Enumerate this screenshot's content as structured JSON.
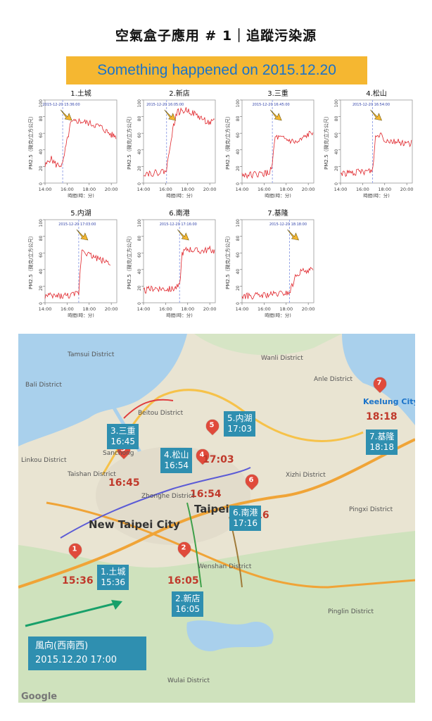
{
  "header": {
    "title": "空氣盒子應用 # 1｜追蹤污染源",
    "banner": "Something happened on 2015.12.20"
  },
  "axis": {
    "ylabel": "PM2.5（微克/立方公尺）",
    "xlabel": "時間(時：分)",
    "yticks": [
      "0",
      "20",
      "40",
      "60",
      "80",
      "100"
    ],
    "xticks": [
      "14:00",
      "16:00",
      "18:00",
      "20:00"
    ]
  },
  "chart_data": [
    {
      "type": "line",
      "title": "1.土城",
      "annotation": "2015-12-20 15:36:00",
      "event_time": "15:36",
      "ylim": [
        0,
        100
      ],
      "xlim": [
        "14:00",
        "20:30"
      ],
      "series": [
        {
          "x": [
            "14:00",
            "14:30",
            "15:00",
            "15:36",
            "15:50",
            "16:20",
            "17:00",
            "18:00",
            "19:00",
            "20:00",
            "20:30"
          ],
          "y": [
            20,
            30,
            22,
            22,
            40,
            72,
            75,
            72,
            68,
            58,
            56
          ]
        }
      ]
    },
    {
      "type": "line",
      "title": "2.新店",
      "annotation": "2015-12-20 16:05:00",
      "event_time": "16:05",
      "ylim": [
        0,
        100
      ],
      "xlim": [
        "14:00",
        "20:30"
      ],
      "series": [
        {
          "x": [
            "14:00",
            "15:00",
            "16:05",
            "16:30",
            "17:00",
            "18:00",
            "19:00",
            "20:00",
            "20:30"
          ],
          "y": [
            12,
            12,
            15,
            55,
            85,
            88,
            80,
            72,
            74
          ]
        }
      ]
    },
    {
      "type": "line",
      "title": "3.三重",
      "annotation": "2015-12-20 16:45:00",
      "event_time": "16:45",
      "ylim": [
        0,
        100
      ],
      "xlim": [
        "14:00",
        "20:30"
      ],
      "series": [
        {
          "x": [
            "14:00",
            "15:00",
            "16:30",
            "16:45",
            "17:00",
            "18:00",
            "19:00",
            "20:00",
            "20:30"
          ],
          "y": [
            10,
            10,
            12,
            25,
            55,
            52,
            48,
            58,
            62
          ]
        }
      ]
    },
    {
      "type": "line",
      "title": "4.松山",
      "annotation": "2015-12-20 16:54:00",
      "event_time": "16:54",
      "ylim": [
        0,
        100
      ],
      "xlim": [
        "14:00",
        "20:30"
      ],
      "series": [
        {
          "x": [
            "14:00",
            "15:00",
            "16:54",
            "17:10",
            "17:40",
            "18:00",
            "19:00",
            "20:00",
            "20:30"
          ],
          "y": [
            12,
            12,
            15,
            55,
            60,
            52,
            50,
            48,
            48
          ]
        }
      ]
    },
    {
      "type": "line",
      "title": "5.内湖",
      "annotation": "2015-12-20 17:03:00",
      "event_time": "17:03",
      "ylim": [
        0,
        100
      ],
      "xlim": [
        "14:00",
        "20:30"
      ],
      "series": [
        {
          "x": [
            "14:00",
            "15:00",
            "16:30",
            "17:03",
            "17:20",
            "18:00",
            "19:00",
            "20:00"
          ],
          "y": [
            8,
            8,
            9,
            12,
            65,
            58,
            52,
            48
          ]
        }
      ]
    },
    {
      "type": "line",
      "title": "6.南港",
      "annotation": "2015-12-20 17:16:00",
      "event_time": "17:16",
      "ylim": [
        0,
        100
      ],
      "xlim": [
        "14:00",
        "20:30"
      ],
      "series": [
        {
          "x": [
            "14:00",
            "15:00",
            "16:30",
            "17:16",
            "17:30",
            "18:00",
            "19:00",
            "20:00",
            "20:30"
          ],
          "y": [
            14,
            18,
            16,
            20,
            60,
            65,
            62,
            64,
            62
          ]
        }
      ]
    },
    {
      "type": "line",
      "title": "7.基隆",
      "annotation": "2015-12-20 18:18:00",
      "event_time": "18:18",
      "ylim": [
        0,
        100
      ],
      "xlim": [
        "14:00",
        "20:30"
      ],
      "series": [
        {
          "x": [
            "14:00",
            "15:00",
            "16:00",
            "17:00",
            "18:18",
            "18:40",
            "19:00",
            "20:00",
            "20:30"
          ],
          "y": [
            8,
            8,
            9,
            10,
            12,
            25,
            35,
            40,
            38
          ]
        }
      ]
    }
  ],
  "map": {
    "stations": [
      {
        "num": "1",
        "name": "1.土城",
        "time": "15:36"
      },
      {
        "num": "2",
        "name": "2.新店",
        "time": "16:05"
      },
      {
        "num": "3",
        "name": "3.三重",
        "time": "16:45"
      },
      {
        "num": "4",
        "name": "4.松山",
        "time": "16:54"
      },
      {
        "num": "5",
        "name": "5.内湖",
        "time": "17:03"
      },
      {
        "num": "6",
        "name": "6.南港",
        "time": "17:16"
      },
      {
        "num": "7",
        "name": "7.基隆",
        "time": "18:18"
      }
    ],
    "wind": {
      "line1": "風向(西南西)",
      "line2": "2015.12.20 17:00"
    },
    "places": [
      "Tamsui District",
      "Bali District",
      "Linkou District",
      "Taishan District",
      "Sanchong",
      "New Taipei City",
      "Taipei",
      "Zhonghe District",
      "Wenshan District",
      "Xizhi District",
      "Wanli District",
      "Anle District",
      "Keelung City",
      "Pingxi District",
      "Pinglin District",
      "Wulai District",
      "Beitou District"
    ],
    "attribution": "Google"
  },
  "colors": {
    "banner_bg": "#f5b731",
    "banner_text": "#1b73c9",
    "series": "#e0252b",
    "box": "#2f8fb0",
    "pin": "#e04a3b",
    "arrow": "#f5b731"
  }
}
